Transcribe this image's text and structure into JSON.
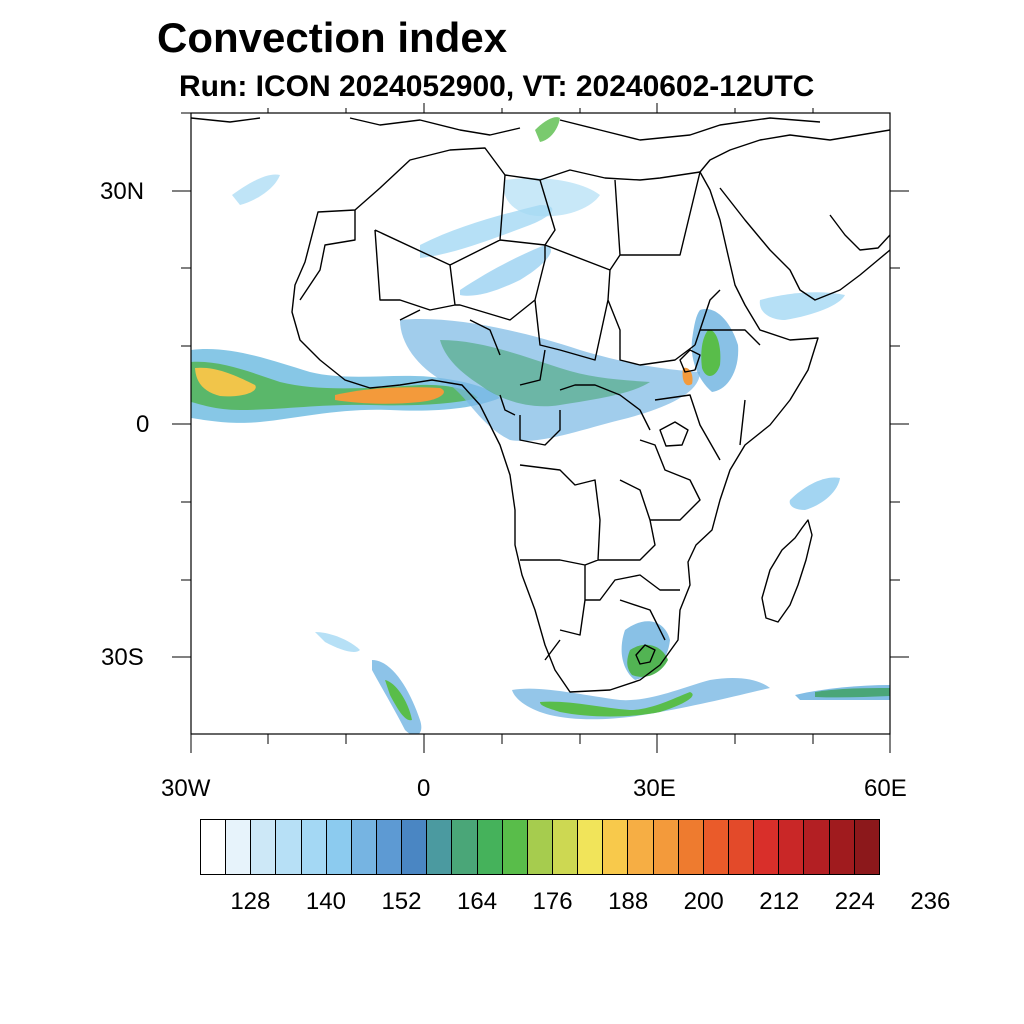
{
  "title": "Convection index",
  "subtitle": "Run: ICON 2024052900,  VT: 20240602-12UTC",
  "map": {
    "region": "Africa",
    "lon_range": [
      -30,
      60
    ],
    "lat_range": [
      -40,
      40
    ],
    "lat_labels": [
      "30N",
      "0",
      "30S"
    ],
    "lon_labels": [
      "30W",
      "0",
      "30E",
      "60E"
    ],
    "land_color": "#ffffff",
    "border_color": "#000000"
  },
  "colorbar": {
    "colors": [
      "#ffffff",
      "#e7f3fb",
      "#cde8f7",
      "#b7e0f6",
      "#a4d8f4",
      "#8ccbef",
      "#76b4e2",
      "#5d9ad3",
      "#4a86c3",
      "#4b9aa0",
      "#4aa678",
      "#45b25b",
      "#59bd4a",
      "#a6cc4e",
      "#cdd852",
      "#f1e45a",
      "#f8c94b",
      "#f6ae44",
      "#f39a3b",
      "#ee7b2f",
      "#ea5b2a",
      "#e34a2a",
      "#d92f2a",
      "#c92727",
      "#b31f23",
      "#a01b1e",
      "#8c181b"
    ],
    "labels": [
      "128",
      "140",
      "152",
      "164",
      "176",
      "188",
      "200",
      "212",
      "224",
      "236"
    ]
  }
}
